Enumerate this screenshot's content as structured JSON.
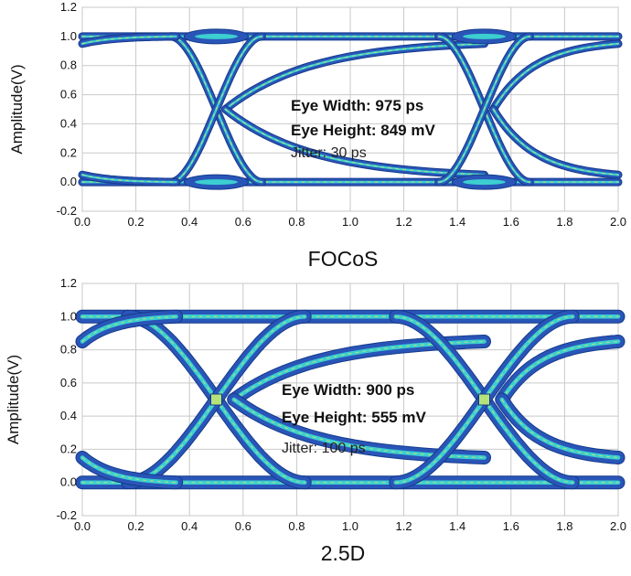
{
  "chart_data": [
    {
      "type": "line",
      "chart_kind": "eye-diagram",
      "xlabel": "FOCoS",
      "ylabel": "Amplitude(V)",
      "xlim": [
        0.0,
        2.0
      ],
      "ylim": [
        -0.2,
        1.2
      ],
      "x_ticks": [
        "0.0",
        "0.2",
        "0.4",
        "0.6",
        "0.8",
        "1.0",
        "1.2",
        "1.4",
        "1.6",
        "1.8",
        "2.0"
      ],
      "y_ticks": [
        "-0.2",
        "0.0",
        "0.2",
        "0.4",
        "0.6",
        "0.8",
        "1.0",
        "1.2"
      ],
      "grid": true,
      "crossings": [
        {
          "x": 0.5,
          "y": 0.5
        },
        {
          "x": 1.5,
          "y": 0.5
        }
      ],
      "levels": {
        "high": 1.0,
        "low": 0.0,
        "residual_high": 0.95,
        "residual_low": 0.05
      },
      "annotations": {
        "eye_width": "Eye Width: 975 ps",
        "eye_height": "Eye Height: 849 mV",
        "jitter": "Jitter: 30 ps"
      },
      "colors": {
        "trace": "#2a55b8",
        "trace_edge": "#143a8c",
        "hot": "#b6e27a",
        "core": "#3ccfd0"
      }
    },
    {
      "type": "line",
      "chart_kind": "eye-diagram",
      "xlabel": "2.5D",
      "ylabel": "Amplitude(V)",
      "xlim": [
        0.0,
        2.0
      ],
      "ylim": [
        -0.2,
        1.2
      ],
      "x_ticks": [
        "0.0",
        "0.2",
        "0.4",
        "0.6",
        "0.8",
        "1.0",
        "1.2",
        "1.4",
        "1.6",
        "1.8",
        "2.0"
      ],
      "y_ticks": [
        "-0.2",
        "0.0",
        "0.2",
        "0.4",
        "0.6",
        "0.8",
        "1.0",
        "1.2"
      ],
      "grid": true,
      "crossings": [
        {
          "x": 0.5,
          "y": 0.5
        },
        {
          "x": 1.5,
          "y": 0.5
        }
      ],
      "levels": {
        "high": 1.0,
        "low": 0.0,
        "residual_high": 0.85,
        "residual_low": 0.15
      },
      "annotations": {
        "eye_width": "Eye Width: 900 ps",
        "eye_height": "Eye Height: 555 mV",
        "jitter": "Jitter: 100 ps"
      },
      "colors": {
        "trace": "#2a55b8",
        "trace_edge": "#143a8c",
        "hot": "#b6e27a",
        "core": "#3ccfd0"
      }
    }
  ]
}
